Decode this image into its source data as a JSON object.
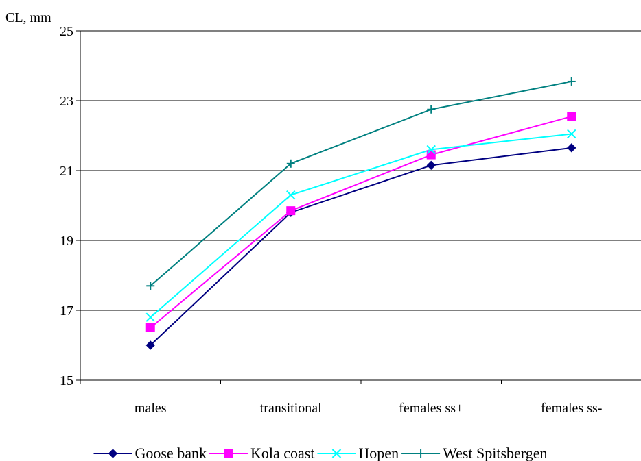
{
  "chart_data": {
    "type": "line",
    "title": "",
    "xlabel": "",
    "ylabel": "CL, mm",
    "ylim": [
      15,
      25
    ],
    "yticks": [
      "15",
      "17",
      "19",
      "21",
      "23",
      "25"
    ],
    "grid": true,
    "legend_position": "bottom",
    "categories": [
      "males",
      "transitional",
      "females ss+",
      "females ss-"
    ],
    "series": [
      {
        "name": "Goose bank",
        "color": "#000080",
        "marker": "diamond",
        "values": [
          16.0,
          19.8,
          21.15,
          21.65
        ]
      },
      {
        "name": "Kola coast",
        "color": "#ff00ff",
        "marker": "square",
        "values": [
          16.5,
          19.85,
          21.45,
          22.55
        ]
      },
      {
        "name": "Hopen",
        "color": "#00ffff",
        "marker": "x",
        "values": [
          16.8,
          20.3,
          21.6,
          22.05
        ]
      },
      {
        "name": "West Spitsbergen",
        "color": "#008080",
        "marker": "plus",
        "values": [
          17.7,
          21.2,
          22.75,
          23.55
        ]
      }
    ]
  }
}
